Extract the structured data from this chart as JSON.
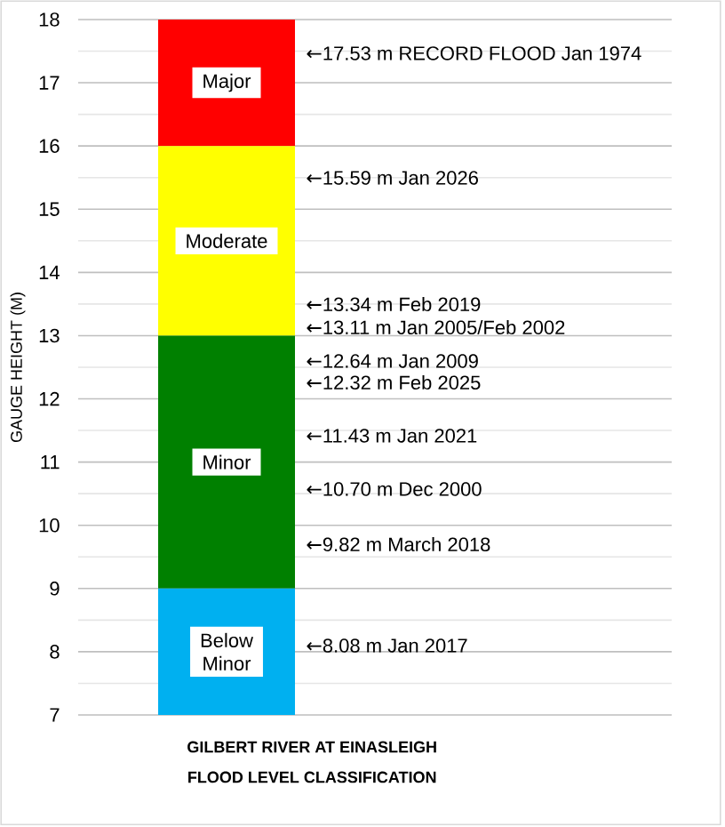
{
  "chart_data": {
    "type": "bar",
    "categories": [
      null
    ],
    "series": [
      {
        "name": "Below Minor",
        "color": "#00b0f0",
        "base": [
          7
        ],
        "values": [
          2
        ]
      },
      {
        "name": "Minor",
        "color": "#008000",
        "base": [
          9
        ],
        "values": [
          4
        ]
      },
      {
        "name": "Moderate",
        "color": "#ffff00",
        "base": [
          13
        ],
        "values": [
          3
        ]
      },
      {
        "name": "Major",
        "color": "#ff0000",
        "base": [
          16
        ],
        "values": [
          2
        ]
      }
    ],
    "xlabel": "GILBERT RIVER AT EINASLEIGH",
    "ylabel": "GAUGE HEIGHT (M)",
    "ylim": [
      7,
      18
    ],
    "yticks": [
      7,
      {
        "value": 7.5,
        "label": null
      },
      8,
      {
        "value": 8.5,
        "label": null
      },
      9,
      {
        "value": 9.5,
        "label": null
      },
      10,
      {
        "value": 10.5,
        "label": null
      },
      11,
      {
        "value": 11.5,
        "label": null
      },
      12,
      {
        "value": 12.5,
        "label": null
      },
      13,
      {
        "value": 13.5,
        "label": null
      },
      14,
      {
        "value": 14.5,
        "label": null
      },
      15,
      {
        "value": 15.5,
        "label": null
      },
      16,
      {
        "value": 16.5,
        "label": null
      },
      17,
      {
        "value": 17.5,
        "label": null
      },
      18
    ],
    "grid": "y",
    "tick_labels": "y",
    "annotations": [
      "←17.53 m RECORD FLOOD Jan 1974",
      "←15.59 m Jan 2026",
      "←13.34 m Feb 2019",
      "←13.11 m Jan 2005/Feb 2002",
      "←12.64 m Jan 2009",
      "←12.32 m Feb 2025",
      "←11.43 m Jan 2021",
      "←10.70 m Dec 2000",
      "←9.82 m March 2018",
      "←8.08 m Jan 2017",
      "FLOOD LEVEL CLASSIFICATION"
    ]
  }
}
